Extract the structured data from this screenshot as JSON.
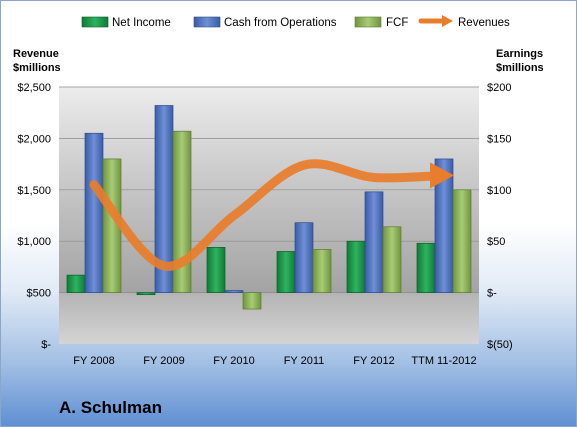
{
  "company": "A. Schulman",
  "chart_data": {
    "type": "bar",
    "categories": [
      "FY 2008",
      "FY 2009",
      "FY 2010",
      "FY 2011",
      "FY 2012",
      "TTM 11-2012"
    ],
    "left_axis": {
      "title_line1": "Revenue",
      "title_line2": "$millions",
      "range": [
        0,
        2500
      ],
      "ticks": [
        0,
        500,
        1000,
        1500,
        2000,
        2500
      ],
      "tick_labels": [
        "$-",
        "$500",
        "$1,000",
        "$1,500",
        "$2,000",
        "$2,500"
      ]
    },
    "right_axis": {
      "title_line1": "Earnings",
      "title_line2": "$millions",
      "range": [
        -50,
        200
      ],
      "ticks": [
        -50,
        0,
        50,
        100,
        150,
        200
      ],
      "tick_labels": [
        "$(50)",
        "$-",
        "$50",
        "$100",
        "$150",
        "$200"
      ]
    },
    "series": [
      {
        "name": "Net Income",
        "type": "bar",
        "axis": "right",
        "color": "#1e9a4c",
        "values": [
          17,
          -2,
          44,
          40,
          50,
          48
        ]
      },
      {
        "name": "Cash from Operations",
        "type": "bar",
        "axis": "right",
        "color": "#4f73c0",
        "values": [
          155,
          182,
          2,
          68,
          98,
          130
        ]
      },
      {
        "name": "FCF",
        "type": "bar",
        "axis": "right",
        "color": "#8fb55a",
        "values": [
          130,
          157,
          -16,
          42,
          64,
          100
        ]
      },
      {
        "name": "Revenues",
        "type": "line",
        "axis": "left",
        "color": "#e97d2b",
        "values": [
          1550,
          760,
          1250,
          1740,
          1620,
          1640
        ]
      }
    ],
    "legend_position": "top",
    "grid": true
  }
}
